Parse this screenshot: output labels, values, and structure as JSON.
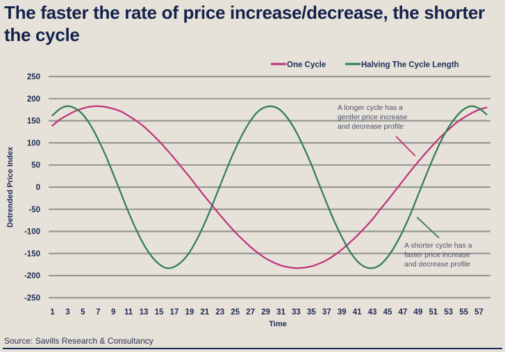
{
  "title": "The faster the rate of price increase/decrease, the shorter the cycle",
  "source": "Source: Savills Research & Consultancy",
  "colors": {
    "one_cycle": "#c0307a",
    "halving": "#2e7a55",
    "grid": "#8a8a88",
    "text": "#1d2a55",
    "background": "#e6e2d9"
  },
  "chart_data": {
    "type": "line",
    "title": "The faster the rate of price increase/decrease, the shorter the cycle",
    "xlabel": "Time",
    "ylabel": "Detrended Price Index",
    "ylim": [
      -250,
      250
    ],
    "yticks": [
      250,
      200,
      150,
      100,
      50,
      0,
      -50,
      -100,
      -150,
      -200,
      -250
    ],
    "x": [
      1,
      2,
      3,
      4,
      5,
      6,
      7,
      8,
      9,
      10,
      11,
      12,
      13,
      14,
      15,
      16,
      17,
      18,
      19,
      20,
      21,
      22,
      23,
      24,
      25,
      26,
      27,
      28,
      29,
      30,
      31,
      32,
      33,
      34,
      35,
      36,
      37,
      38,
      39,
      40,
      41,
      42,
      43,
      44,
      45,
      46,
      47,
      48,
      49,
      50,
      51,
      52,
      53,
      54,
      55,
      56,
      57,
      58
    ],
    "xtick_labels": [
      "1",
      "3",
      "5",
      "7",
      "9",
      "11",
      "13",
      "15",
      "17",
      "19",
      "21",
      "23",
      "25",
      "27",
      "29",
      "31",
      "33",
      "35",
      "37",
      "39",
      "41",
      "43",
      "45",
      "47",
      "49",
      "51",
      "53",
      "55",
      "57"
    ],
    "grid": true,
    "legend_position": "top-right",
    "series": [
      {
        "name": "One Cycle",
        "color": "#c0307a",
        "values": [
          139,
          153,
          163,
          172,
          178,
          182,
          183,
          181,
          177,
          171,
          161,
          150,
          137,
          121,
          104,
          85,
          65,
          44,
          23,
          1,
          -21,
          -42,
          -63,
          -83,
          -102,
          -119,
          -135,
          -149,
          -161,
          -170,
          -177,
          -181,
          -183,
          -182,
          -179,
          -173,
          -165,
          -154,
          -141,
          -126,
          -110,
          -92,
          -73,
          -51,
          -30,
          -8,
          14,
          36,
          57,
          77,
          96,
          114,
          130,
          145,
          157,
          167,
          175,
          180
        ]
      },
      {
        "name": "Halving The Cycle Length",
        "color": "#2e7a55",
        "values": [
          162,
          177,
          183,
          178,
          164,
          140,
          108,
          71,
          29,
          -14,
          -57,
          -96,
          -130,
          -156,
          -174,
          -183,
          -180,
          -168,
          -147,
          -117,
          -81,
          -40,
          3,
          46,
          86,
          121,
          150,
          171,
          181,
          182,
          173,
          153,
          125,
          90,
          51,
          7,
          -36,
          -77,
          -113,
          -144,
          -167,
          -180,
          -183,
          -176,
          -158,
          -132,
          -99,
          -61,
          -18,
          25,
          66,
          104,
          135,
          159,
          176,
          183,
          178,
          164
        ]
      }
    ],
    "annotations": [
      {
        "series": "One Cycle",
        "lines": [
          "A longer cycle has a",
          "gentler price increase",
          "and decrease profile"
        ],
        "points_to_x": 49,
        "points_to_y": 75
      },
      {
        "series": "Halving The Cycle Length",
        "lines": [
          "A shorter cycle has a",
          "faster price increase",
          "and decrease profile"
        ],
        "points_to_x": 48.5,
        "points_to_y": -65
      }
    ]
  }
}
